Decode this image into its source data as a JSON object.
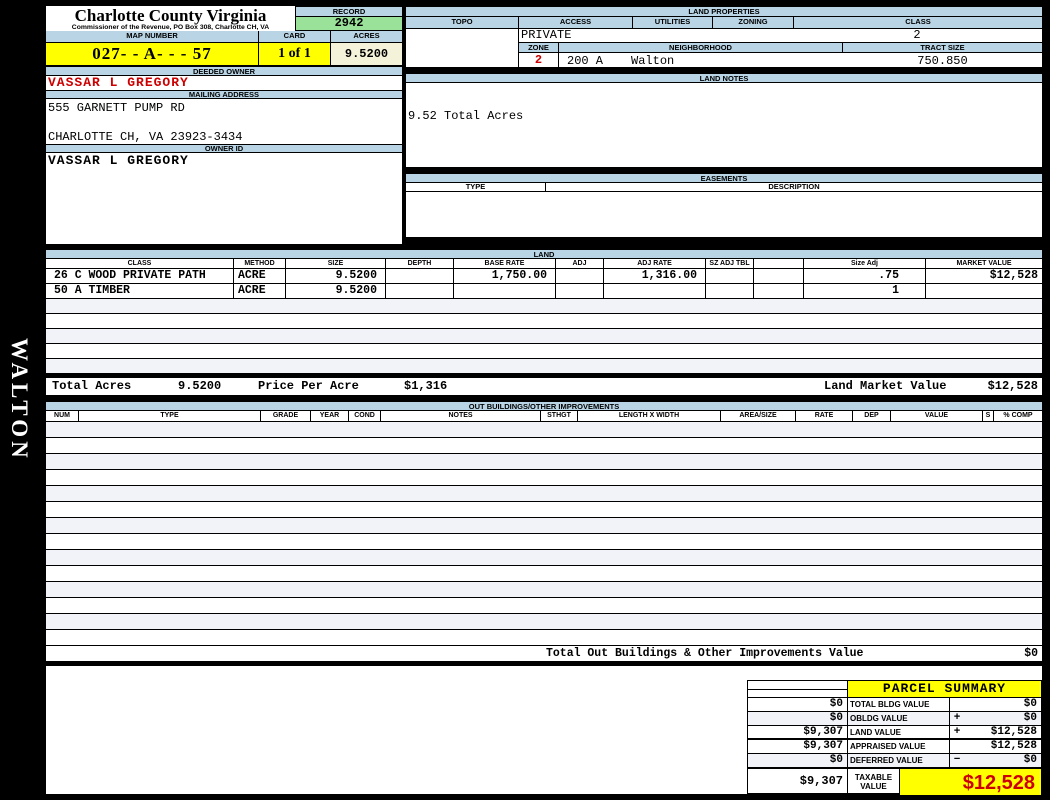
{
  "sidebar": {
    "vertical_label": "WALTON"
  },
  "header": {
    "title": "Charlotte County Virginia",
    "subtitle": "Commissioner of the Revenue, PO Box 308, Charlotte CH, VA",
    "record_label": "RECORD",
    "record_value": "2942",
    "map_number_label": "MAP NUMBER",
    "map_number_value": "027- - A- - - 57",
    "card_label": "CARD",
    "card_value": "1 of 1",
    "acres_label": "ACRES",
    "acres_value": "9.5200"
  },
  "owner": {
    "deeded_owner_label": "DEEDED OWNER",
    "deeded_owner": "VASSAR L GREGORY",
    "mailing_address_label": "MAILING ADDRESS",
    "address_line1": "555 GARNETT PUMP RD",
    "address_line2": "CHARLOTTE CH, VA 23923-3434",
    "owner_id_label": "OWNER ID",
    "owner_id": "VASSAR L GREGORY"
  },
  "land_properties": {
    "title": "LAND PROPERTIES",
    "col_topo": "TOPO",
    "col_access": "ACCESS",
    "col_utilities": "UTILITIES",
    "col_zoning": "ZONING",
    "col_class": "CLASS",
    "access_value": "PRIVATE",
    "class_value": "2",
    "col_zone": "ZONE",
    "col_neighborhood": "NEIGHBORHOOD",
    "col_tract_size": "TRACT SIZE",
    "zone_value": "2",
    "neighborhood_code": "200 A",
    "neighborhood_name": "Walton",
    "tract_size_value": "750.850"
  },
  "land_notes": {
    "title": "LAND NOTES",
    "note": "9.52 Total Acres"
  },
  "easements": {
    "title": "EASEMENTS",
    "col_type": "TYPE",
    "col_description": "DESCRIPTION"
  },
  "land": {
    "title": "LAND",
    "columns": [
      "CLASS",
      "METHOD",
      "SIZE",
      "DEPTH",
      "BASE RATE",
      "ADJ",
      "ADJ RATE",
      "SZ ADJ TBL",
      "",
      "Size Adj",
      "MARKET VALUE"
    ],
    "rows": [
      [
        "26 C WOOD PRIVATE PATH",
        "ACRE",
        "9.5200",
        "",
        "1,750.00",
        "",
        "1,316.00",
        "",
        "",
        ".75",
        "$12,528"
      ],
      [
        "50 A TIMBER",
        "ACRE",
        "9.5200",
        "",
        "",
        "",
        "",
        "",
        "",
        "1",
        ""
      ]
    ],
    "totals": {
      "acres_label": "Total Acres",
      "acres": "9.5200",
      "price_label": "Price Per Acre",
      "price": "$1,316",
      "market_label": "Land Market Value",
      "market": "$12,528"
    }
  },
  "out_buildings": {
    "title": "OUT BUILDINGS/OTHER IMPROVEMENTS",
    "columns": [
      "NUM",
      "TYPE",
      "GRADE",
      "YEAR",
      "COND",
      "NOTES",
      "STHGT",
      "LENGTH X WIDTH",
      "AREA/SIZE",
      "RATE",
      "DEP",
      "VALUE",
      "S",
      "% COMP"
    ],
    "total_label": "Total Out Buildings & Other Improvements Value",
    "total_value": "$0"
  },
  "parcel_summary": {
    "title": "PARCEL SUMMARY",
    "rows": [
      {
        "prior": "$0",
        "label": "TOTAL BLDG VALUE",
        "op": "",
        "value": "$0"
      },
      {
        "prior": "$0",
        "label": "OBLDG VALUE",
        "op": "+",
        "value": "$0"
      },
      {
        "prior": "$9,307",
        "label": "LAND VALUE",
        "op": "+",
        "value": "$12,528"
      },
      {
        "prior": "$9,307",
        "label": "APPRAISED VALUE",
        "op": "",
        "value": "$12,528"
      },
      {
        "prior": "$0",
        "label": "DEFERRED VALUE",
        "op": "−",
        "value": "$0"
      }
    ],
    "taxable": {
      "prior": "$9,307",
      "label_line1": "TAXABLE",
      "label_line2": "VALUE",
      "value": "$12,528"
    }
  },
  "colors": {
    "header_blue": "#B9D5E5",
    "highlight_yellow": "#FFFF00",
    "record_green": "#9AE29A",
    "acres_cream": "#F5F2DA",
    "alert_red": "#CC0000",
    "row_stripe": "#F1F3F9"
  }
}
